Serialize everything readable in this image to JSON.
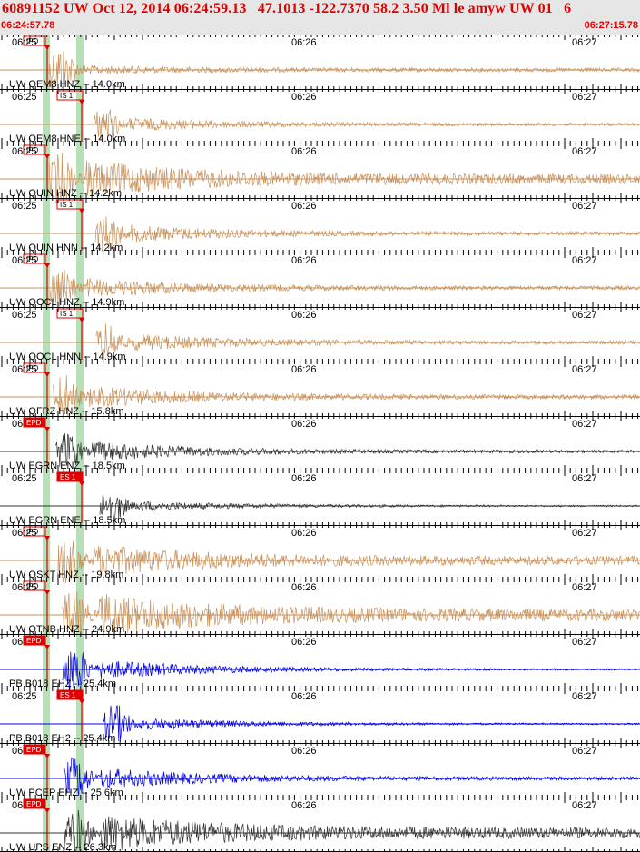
{
  "header": {
    "title": "60891152 UW Oct 12, 2014 06:24:59.13   47.1013 -122.7370 58.2 3.50 Ml le amyw UW 01   6",
    "start_time": "06:24:57.78",
    "end_time": "06:27:15.78"
  },
  "time_ticks": [
    "06:25",
    "06:26",
    "06:27"
  ],
  "colors": {
    "header_text": "#e00000",
    "header_bg": "#e6e6e6",
    "trace_tan": "#c8915a",
    "trace_blue": "#0000e0",
    "trace_dark": "#303030",
    "pick_red": "#e00000",
    "band_green": "#b8e0b8"
  },
  "traces": [
    {
      "label": "UW QEM8 HNZ -- 14.0km",
      "color": "tan",
      "pick": "IPD",
      "pick_time_s": 10.6,
      "env": [
        28,
        3,
        0.7
      ]
    },
    {
      "label": "UW QEM8 HNE -- 14.0km",
      "color": "tan",
      "pick": "IS 1",
      "pick_time_s": 20.3,
      "env": [
        20,
        6,
        0.5
      ]
    },
    {
      "label": "UW QUIN HNZ -- 14.2km",
      "color": "tan",
      "pick": "IPD",
      "pick_time_s": 10.6,
      "env": [
        30,
        16,
        1.8
      ]
    },
    {
      "label": "UW QUIN HNN -- 14.2km",
      "color": "tan",
      "pick": "IS 1",
      "pick_time_s": 20.6,
      "env": [
        22,
        8,
        0.6
      ]
    },
    {
      "label": "UW QOCL HNZ -- 14.9km",
      "color": "tan",
      "pick": "IPD",
      "pick_time_s": 10.9,
      "env": [
        24,
        9,
        0.7
      ]
    },
    {
      "label": "UW QOCL HNN -- 14.9km",
      "color": "tan",
      "pick": "IS 1",
      "pick_time_s": 20.9,
      "env": [
        22,
        8,
        0.6
      ]
    },
    {
      "label": "UW QFRZ HNZ -- 15.8km",
      "color": "tan",
      "pick": "IPD",
      "pick_time_s": 11.3,
      "env": [
        26,
        10,
        0.8
      ]
    },
    {
      "label": "UW EGRN ENZ -- 18.5km",
      "color": "dark",
      "pick": "EPD",
      "pick_time_s": 12.0,
      "env": [
        22,
        10,
        0.5
      ]
    },
    {
      "label": "UW EGRN ENE -- 18.5km",
      "color": "dark",
      "pick": "ES 1",
      "pick_time_s": 21.7,
      "env": [
        20,
        5,
        0.3
      ]
    },
    {
      "label": "UW QSKT HNZ -- 19.8km",
      "color": "tan",
      "pick": "IPD",
      "pick_time_s": 12.4,
      "env": [
        26,
        14,
        1.6
      ]
    },
    {
      "label": "UW QTNB HNZ -- 24.9km",
      "color": "tan",
      "pick": "IPD",
      "pick_time_s": 13.4,
      "env": [
        28,
        18,
        2.2
      ]
    },
    {
      "label": "PB B018 EHZ -- 25.4km",
      "color": "blue",
      "pick": "EPD",
      "pick_time_s": 13.6,
      "env": [
        26,
        10,
        0.3
      ]
    },
    {
      "label": "PB B018 EH2 -- 25.4km",
      "color": "blue",
      "pick": "ES 1",
      "pick_time_s": 22.4,
      "env": [
        22,
        6,
        0.3
      ]
    },
    {
      "label": "UW PCEP EHZ -- 25.6km",
      "color": "blue",
      "pick": "EPD",
      "pick_time_s": 13.7,
      "env": [
        24,
        10,
        0.6
      ]
    },
    {
      "label": "UW UPS ENZ -- 26.3km",
      "color": "dark",
      "pick": "EPD",
      "pick_time_s": 14.0,
      "env": [
        26,
        16,
        2.0
      ]
    }
  ]
}
